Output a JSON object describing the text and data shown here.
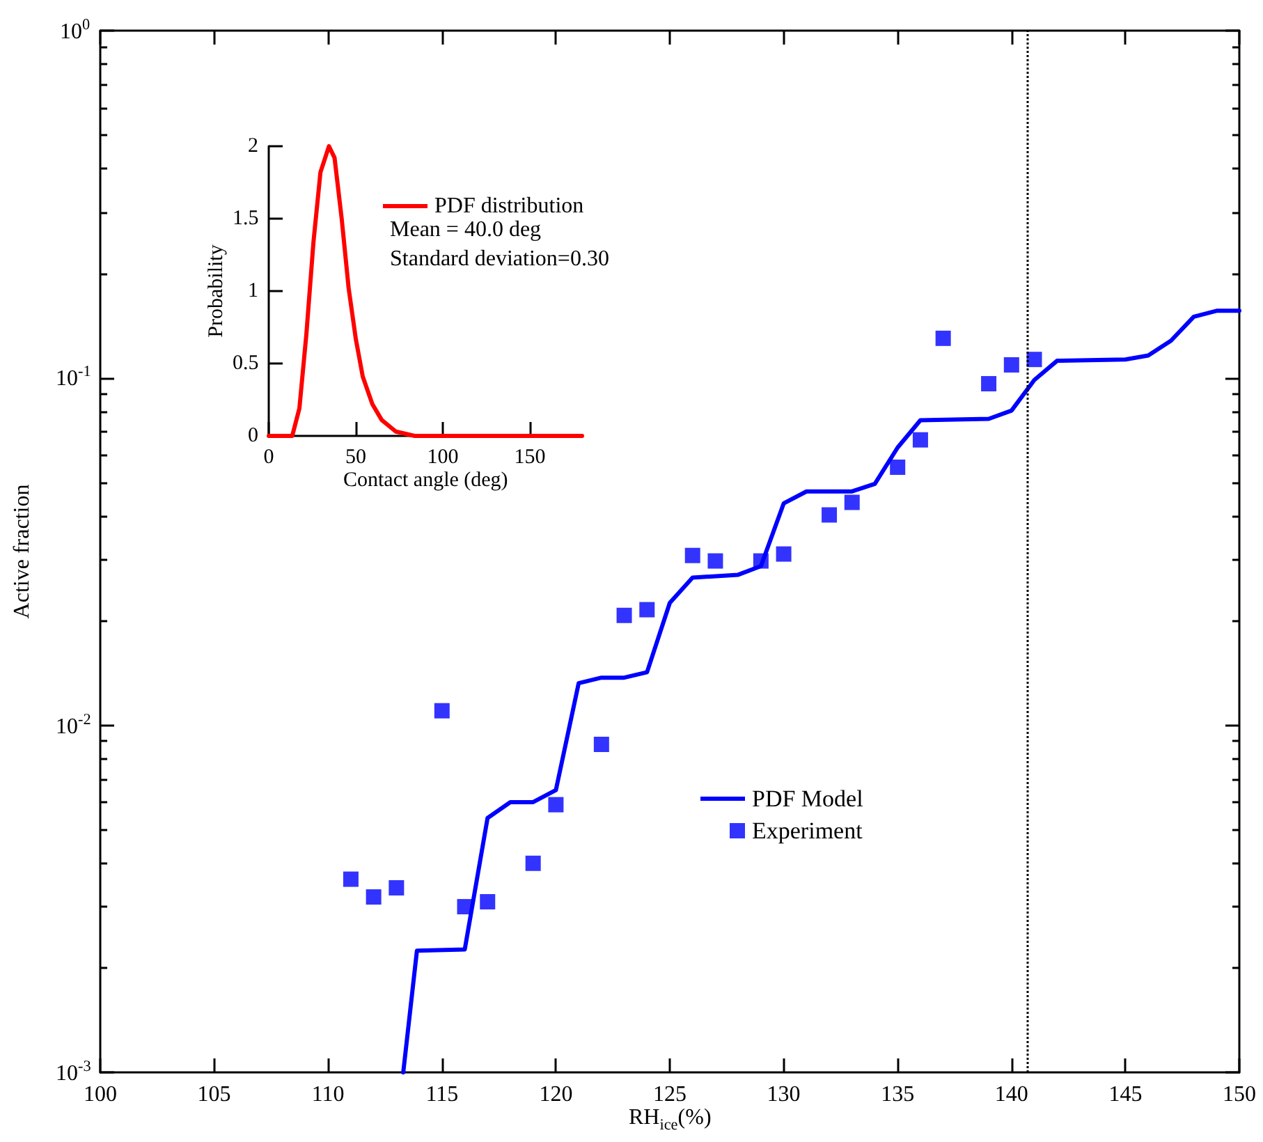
{
  "chart_data": [
    {
      "type": "line",
      "xlabel": "RH$_{ice}$(%)",
      "ylabel": "Active fraction",
      "log": "y",
      "xlim": [
        100,
        150
      ],
      "xticks": [
        100,
        105,
        110,
        115,
        120,
        125,
        130,
        135,
        140,
        145,
        150
      ],
      "ylim": [
        0.001,
        1
      ],
      "yticks": [
        {
          "value": 0.001,
          "label": "10$^{-3}$"
        },
        {
          "value": 0.002,
          "label": null
        },
        {
          "value": 0.003,
          "label": null
        },
        {
          "value": 0.004,
          "label": null
        },
        {
          "value": 0.005,
          "label": null
        },
        {
          "value": 0.006,
          "label": null
        },
        {
          "value": 0.007,
          "label": null
        },
        {
          "value": 0.008,
          "label": null
        },
        {
          "value": 0.009,
          "label": null
        },
        {
          "value": 0.01,
          "label": "10$^{-2}$"
        },
        {
          "value": 0.02,
          "label": null
        },
        {
          "value": 0.03,
          "label": null
        },
        {
          "value": 0.04,
          "label": null
        },
        {
          "value": 0.05,
          "label": null
        },
        {
          "value": 0.06,
          "label": null
        },
        {
          "value": 0.07,
          "label": null
        },
        {
          "value": 0.08,
          "label": null
        },
        {
          "value": 0.09,
          "label": null
        },
        {
          "value": 0.1,
          "label": "10$^{-1}$"
        },
        {
          "value": 0.2,
          "label": null
        },
        {
          "value": 0.3,
          "label": null
        },
        {
          "value": 0.4,
          "label": null
        },
        {
          "value": 0.5,
          "label": null
        },
        {
          "value": 0.6,
          "label": null
        },
        {
          "value": 0.7,
          "label": null
        },
        {
          "value": 0.8,
          "label": null
        },
        {
          "value": 0.9,
          "label": null
        },
        {
          "value": 1,
          "label": "10$^{0}$"
        }
      ],
      "grid": false,
      "legend": "center",
      "series": [
        {
          "name": "PDF Model",
          "type": "line",
          "color": "#0000ff",
          "marker": "none",
          "line_style": "solid",
          "x": [
            113.3,
            113.9,
            116,
            117,
            118,
            119,
            120,
            121,
            122,
            123,
            124,
            125,
            126,
            128,
            129,
            130,
            131,
            133,
            134,
            135,
            136,
            139,
            140,
            141,
            142,
            145,
            146,
            147,
            148,
            149,
            150
          ],
          "values": [
            0.001,
            0.00224,
            0.00226,
            0.0054,
            0.006,
            0.006,
            0.0065,
            0.0132,
            0.0137,
            0.0137,
            0.0142,
            0.0225,
            0.0266,
            0.0271,
            0.0287,
            0.0435,
            0.0471,
            0.0471,
            0.0495,
            0.063,
            0.0755,
            0.0762,
            0.0805,
            0.0986,
            0.112,
            0.113,
            0.116,
            0.128,
            0.15,
            0.156,
            0.156
          ]
        },
        {
          "name": "Experiment",
          "type": "scatter",
          "color": "#0000ff",
          "marker": "square",
          "x": [
            111,
            112,
            113,
            115,
            116,
            117,
            119,
            120,
            122,
            123,
            124,
            126,
            127,
            129,
            130,
            132,
            133,
            135,
            136,
            137,
            139,
            140,
            141
          ],
          "values": [
            0.0036,
            0.0032,
            0.0034,
            0.011,
            0.003,
            0.0031,
            0.004,
            0.0059,
            0.0088,
            0.0207,
            0.0215,
            0.0308,
            0.0297,
            0.0297,
            0.0311,
            0.0403,
            0.0438,
            0.0553,
            0.0663,
            0.13,
            0.0962,
            0.109,
            0.113
          ]
        }
      ],
      "ref_lines": [
        {
          "axis": "x",
          "value": 140.7,
          "color": "#000000",
          "line_style": "dotted"
        }
      ]
    },
    {
      "type": "line",
      "xlabel": "Contact angle (deg)",
      "ylabel": "Probability",
      "xlim": [
        0,
        180
      ],
      "xticks": [
        0,
        50,
        100,
        150
      ],
      "ylim": [
        0,
        2
      ],
      "yticks": [
        0,
        0.5,
        1,
        1.5,
        2
      ],
      "grid": false,
      "legend": "top right",
      "annotations": [
        "Mean = 40.0 deg",
        "Standard deviation=0.30"
      ],
      "series": [
        {
          "name": "PDF distribution",
          "type": "line",
          "color": "#ff0000",
          "marker": "none",
          "line_style": "solid",
          "x": [
            0,
            13.5,
            17.6,
            21.6,
            25.7,
            29.7,
            34.6,
            37.8,
            41.9,
            45.9,
            50,
            54,
            59.5,
            64.9,
            73,
            83.8,
            92,
            180
          ],
          "values": [
            0,
            0,
            0.19,
            0.7,
            1.34,
            1.82,
            2,
            1.92,
            1.5,
            1.02,
            0.67,
            0.41,
            0.22,
            0.11,
            0.03,
            0,
            0,
            0
          ]
        }
      ]
    }
  ]
}
